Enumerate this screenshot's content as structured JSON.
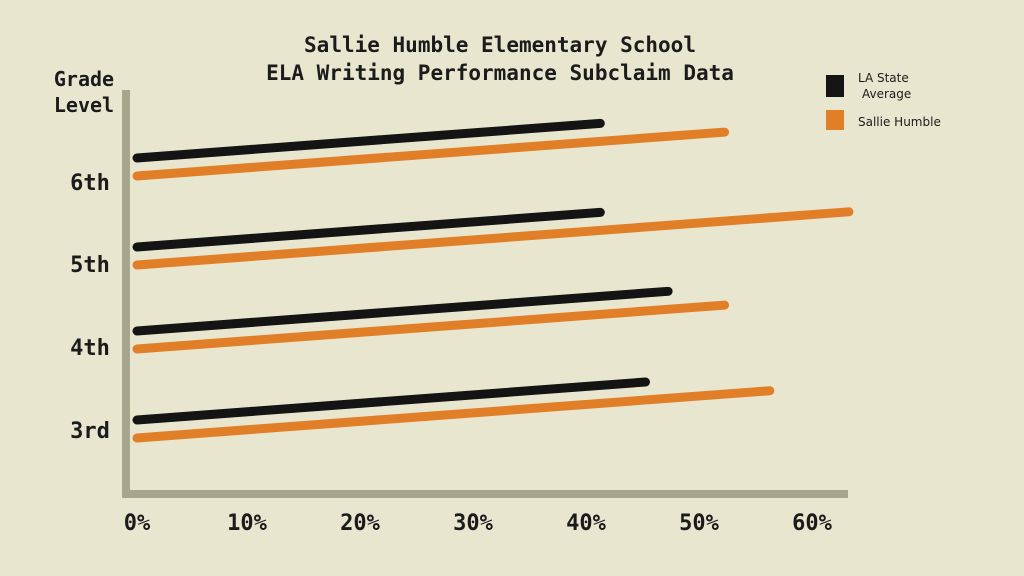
{
  "chart_data": {
    "type": "bar",
    "orientation": "horizontal",
    "title_lines": [
      "Sallie Humble Elementary School",
      "ELA Writing Performance Subclaim Data"
    ],
    "ylabel_lines": [
      "Grade",
      "Level"
    ],
    "xlabel": "",
    "categories": [
      "3rd",
      "4th",
      "5th",
      "6th"
    ],
    "xticks": [
      "0%",
      "10%",
      "20%",
      "30%",
      "40%",
      "50%",
      "60%"
    ],
    "xlim": [
      0,
      63
    ],
    "grid": false,
    "legend_position": "top-right",
    "series": [
      {
        "name": "LA State Average",
        "legend_lines": [
          "LA State",
          "Average"
        ],
        "color": "#141414",
        "values": [
          45,
          47,
          41,
          41
        ]
      },
      {
        "name": "Sallie Humble",
        "legend_lines": [
          "Sallie Humble"
        ],
        "color": "#e07f28",
        "values": [
          56,
          52,
          63,
          52
        ]
      }
    ],
    "axis_color": "#a9a68e"
  }
}
